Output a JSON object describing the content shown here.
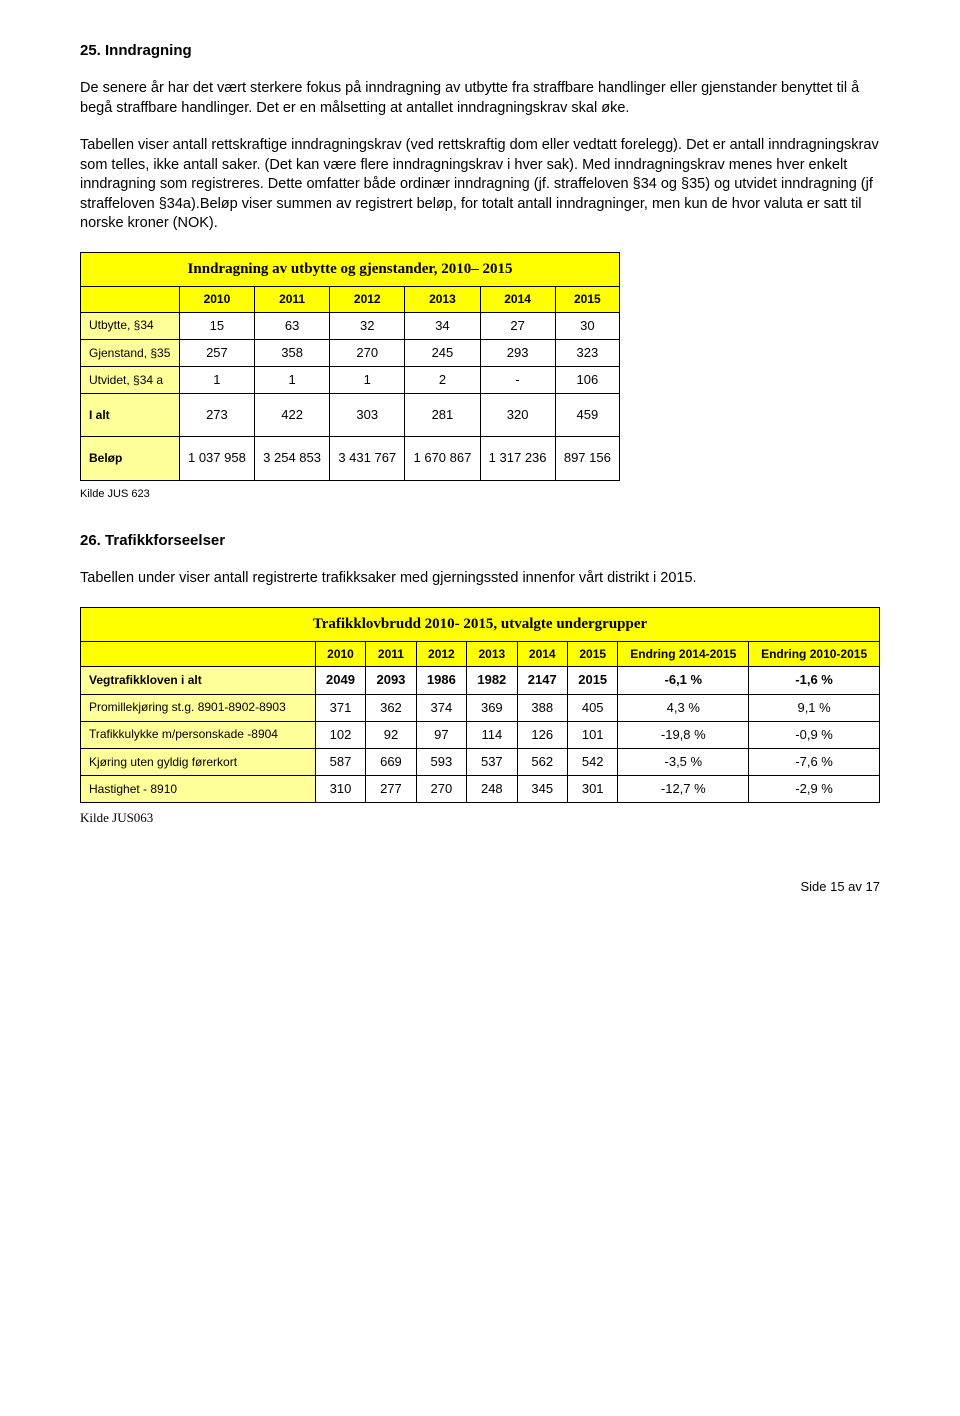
{
  "section25": {
    "heading": "25. Inndragning",
    "para1": "De senere år har det vært sterkere fokus på inndragning av utbytte fra straffbare handlinger eller gjenstander benyttet til å begå straffbare handlinger. Det er en målsetting at antallet inndragningskrav skal øke.",
    "para2": "Tabellen viser antall rettskraftige inndragningskrav (ved rettskraftig dom eller vedtatt forelegg). Det er antall inndragningskrav som telles, ikke antall saker. (Det kan være flere inndragningskrav i hver sak). Med inndragningskrav menes hver enkelt inndragning som registreres. Dette omfatter både ordinær inndragning (jf. straffeloven §34 og §35) og utvidet inndragning (jf straffeloven §34a).Beløp viser summen av registrert beløp, for totalt antall inndragninger, men kun de hvor valuta er satt til norske kroner (NOK)."
  },
  "table1": {
    "title": "Inndragning av utbytte og gjenstander, 2010– 2015",
    "headers": [
      "2010",
      "2011",
      "2012",
      "2013",
      "2014",
      "2015"
    ],
    "rows": [
      {
        "label": "Utbytte, §34",
        "vals": [
          "15",
          "63",
          "32",
          "34",
          "27",
          "30"
        ]
      },
      {
        "label": "Gjenstand, §35",
        "vals": [
          "257",
          "358",
          "270",
          "245",
          "293",
          "323"
        ]
      },
      {
        "label": "Utvidet, §34 a",
        "vals": [
          "1",
          "1",
          "1",
          "2",
          "-",
          "106"
        ]
      }
    ],
    "totalRow": {
      "label": "I alt",
      "vals": [
        "273",
        "422",
        "303",
        "281",
        "320",
        "459"
      ]
    },
    "belopRow": {
      "label": "Beløp",
      "vals": [
        "1 037 958",
        "3 254 853",
        "3 431 767",
        "1 670 867",
        "1 317 236",
        "897 156"
      ]
    },
    "source": "Kilde JUS 623"
  },
  "section26": {
    "heading": "26. Trafikkforseelser",
    "para1": "Tabellen under viser antall registrerte trafikksaker med gjerningssted innenfor vårt distrikt i 2015."
  },
  "table2": {
    "title": "Trafikklovbrudd 2010- 2015, utvalgte undergrupper",
    "headers": [
      "2010",
      "2011",
      "2012",
      "2013",
      "2014",
      "2015",
      "Endring 2014-2015",
      "Endring 2010-2015"
    ],
    "rows": [
      {
        "label": "Vegtrafikkloven i alt",
        "bold": true,
        "vals": [
          "2049",
          "2093",
          "1986",
          "1982",
          "2147",
          "2015",
          "-6,1 %",
          "-1,6 %"
        ]
      },
      {
        "label": "Promillekjøring st.g. 8901-8902-8903",
        "bold": false,
        "vals": [
          "371",
          "362",
          "374",
          "369",
          "388",
          "405",
          "4,3 %",
          "9,1 %"
        ]
      },
      {
        "label": "Trafikkulykke m/personskade -8904",
        "bold": false,
        "vals": [
          "102",
          "92",
          "97",
          "114",
          "126",
          "101",
          "-19,8 %",
          "-0,9 %"
        ]
      },
      {
        "label": "Kjøring uten gyldig førerkort",
        "bold": false,
        "vals": [
          "587",
          "669",
          "593",
          "537",
          "562",
          "542",
          "-3,5 %",
          "-7,6 %"
        ]
      },
      {
        "label": "Hastighet - 8910",
        "bold": false,
        "vals": [
          "310",
          "277",
          "270",
          "248",
          "345",
          "301",
          "-12,7 %",
          "-2,9 %"
        ]
      }
    ],
    "source": "Kilde JUS063"
  },
  "footer": "Side 15 av 17",
  "colors": {
    "yellow": "#ffff00",
    "lightYellow": "#ffff99",
    "border": "#000000",
    "bg": "#ffffff"
  }
}
